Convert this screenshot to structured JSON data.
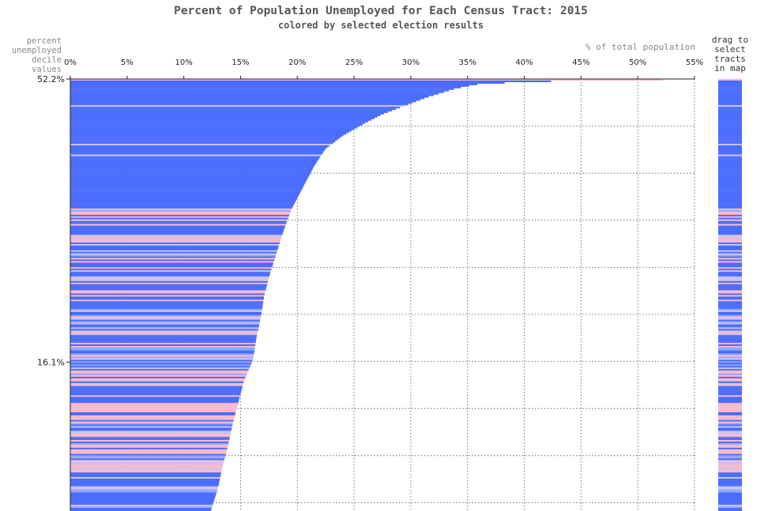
{
  "chart_data": {
    "type": "bar",
    "orientation": "horizontal",
    "title": "Percent of Population Unemployed for Each Census Tract: 2015",
    "subtitle": "colored by selected election results",
    "ylabel_lines": [
      "percent",
      "unemployed",
      "decile",
      "values"
    ],
    "xlabel": "% of total population",
    "x_ticks": [
      "0%",
      "5%",
      "10%",
      "15%",
      "20%",
      "25%",
      "30%",
      "35%",
      "40%",
      "45%",
      "50%",
      "55%"
    ],
    "xlim": [
      0,
      55
    ],
    "y_ticks": [
      {
        "label": "52.2%",
        "rank_fraction": 0
      },
      {
        "label": "16.1%",
        "rank_fraction": 0.6556
      }
    ],
    "grid": true,
    "bar_count": 280,
    "sorted": "descending",
    "value_profile": [
      [
        0,
        52.2
      ],
      [
        0.002,
        45
      ],
      [
        0.005,
        40
      ],
      [
        0.01,
        36
      ],
      [
        0.02,
        34
      ],
      [
        0.04,
        31.5
      ],
      [
        0.06,
        29.5
      ],
      [
        0.08,
        27.5
      ],
      [
        0.1,
        26
      ],
      [
        0.13,
        24
      ],
      [
        0.16,
        22.5
      ],
      [
        0.2,
        21.5
      ],
      [
        0.25,
        20.5
      ],
      [
        0.3,
        19.5
      ],
      [
        0.35,
        18.8
      ],
      [
        0.4,
        18.2
      ],
      [
        0.45,
        17.6
      ],
      [
        0.5,
        17.1
      ],
      [
        0.55,
        16.8
      ],
      [
        0.6,
        16.4
      ],
      [
        0.65,
        16.1
      ],
      [
        0.7,
        15.3
      ],
      [
        0.75,
        14.8
      ],
      [
        0.8,
        14.3
      ],
      [
        0.85,
        13.9
      ],
      [
        0.9,
        13.4
      ],
      [
        0.95,
        13.0
      ],
      [
        1.0,
        12.4
      ]
    ],
    "bar_colors": {
      "blue": "#4a6cff",
      "light_blue": "#8fa8ff",
      "lavender": "#c9c3f0",
      "pink": "#ffb8c8"
    },
    "side_strip": {
      "label_lines": [
        "drag to",
        "select",
        "tracts",
        "in map"
      ]
    }
  }
}
